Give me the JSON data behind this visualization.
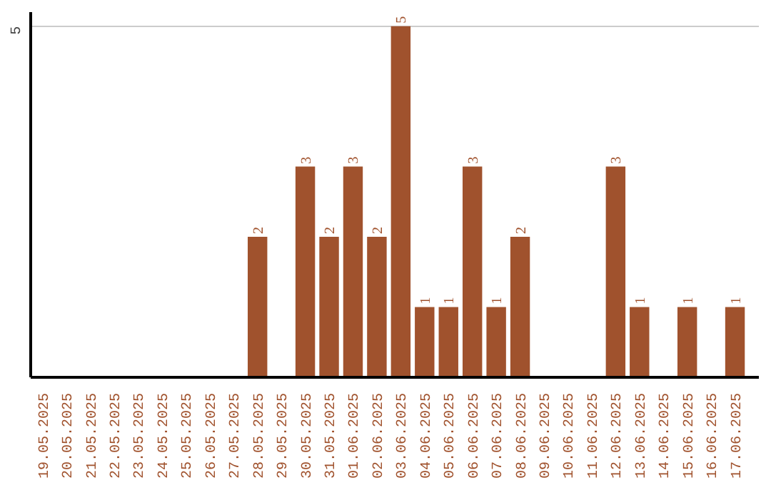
{
  "chart_data": {
    "type": "bar",
    "categories": [
      "19.05.2025",
      "20.05.2025",
      "21.05.2025",
      "22.05.2025",
      "23.05.2025",
      "24.05.2025",
      "25.05.2025",
      "26.05.2025",
      "27.05.2025",
      "28.05.2025",
      "29.05.2025",
      "30.05.2025",
      "31.05.2025",
      "01.06.2025",
      "02.06.2025",
      "03.06.2025",
      "04.06.2025",
      "05.06.2025",
      "06.06.2025",
      "07.06.2025",
      "08.06.2025",
      "09.06.2025",
      "10.06.2025",
      "11.06.2025",
      "12.06.2025",
      "13.06.2025",
      "14.06.2025",
      "15.06.2025",
      "16.06.2025",
      "17.06.2025"
    ],
    "values": [
      0,
      0,
      0,
      0,
      0,
      0,
      0,
      0,
      0,
      2,
      0,
      3,
      2,
      3,
      2,
      5,
      1,
      1,
      3,
      1,
      2,
      0,
      0,
      0,
      3,
      1,
      0,
      1,
      0,
      1
    ],
    "value_labels": [
      null,
      null,
      null,
      null,
      null,
      null,
      null,
      null,
      null,
      "2",
      null,
      "3",
      "2",
      "3",
      "2",
      "5",
      "1",
      "1",
      "3",
      "1",
      "2",
      null,
      null,
      null,
      "3",
      "1",
      null,
      "1",
      null,
      "1"
    ],
    "color": "#a0522d",
    "ylim": [
      0,
      5.2
    ],
    "yticks": [
      5
    ],
    "grid": "y"
  }
}
